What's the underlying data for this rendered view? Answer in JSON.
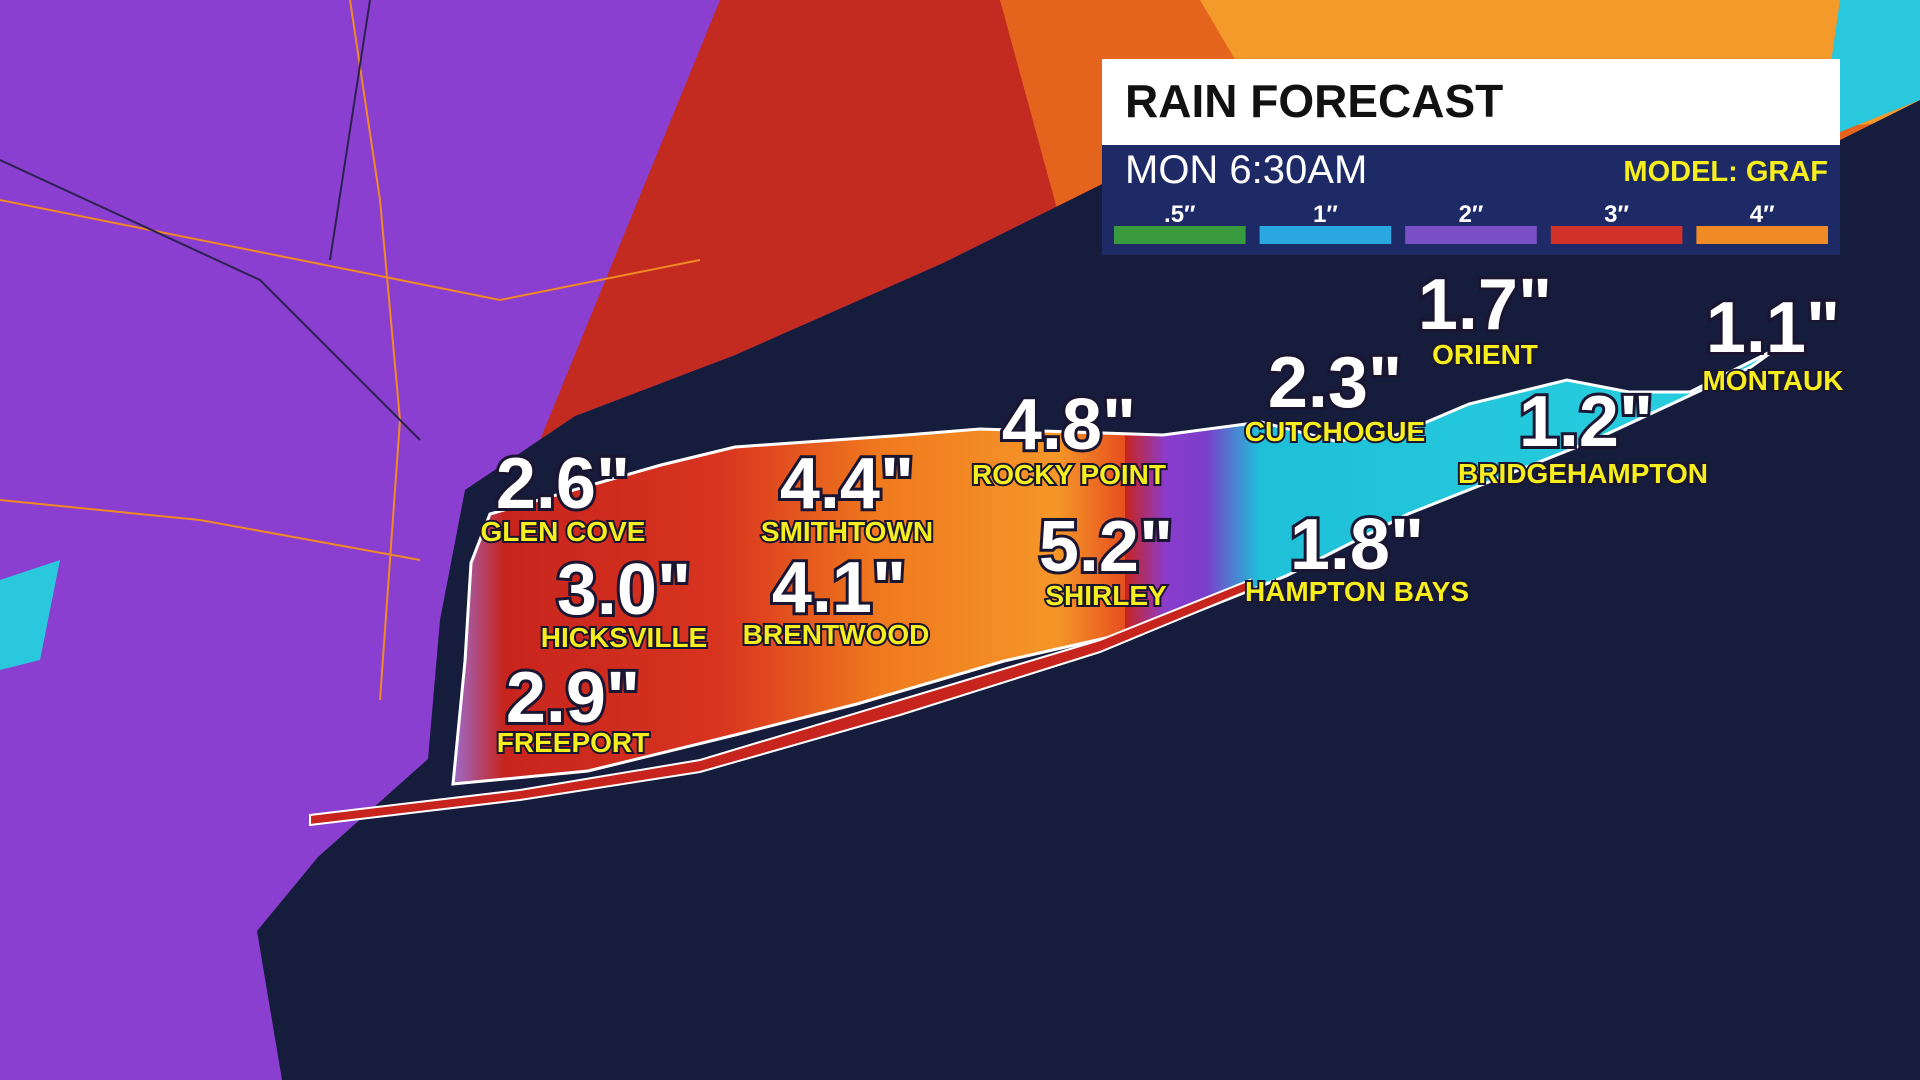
{
  "header": {
    "title": "RAIN FORECAST",
    "time": "MON 6:30AM",
    "model": "MODEL: GRAF"
  },
  "legend": [
    {
      "label": ".5″",
      "color": "#3a9a3e"
    },
    {
      "label": "1″",
      "color": "#2aa6e0"
    },
    {
      "label": "2″",
      "color": "#7b4fc6"
    },
    {
      "label": "3″",
      "color": "#d2312a"
    },
    {
      "label": "4″",
      "color": "#f08a24"
    }
  ],
  "locations": [
    {
      "value": "2.6\"",
      "name": "GLEN COVE"
    },
    {
      "value": "3.0\"",
      "name": "HICKSVILLE"
    },
    {
      "value": "2.9\"",
      "name": "FREEPORT"
    },
    {
      "value": "4.4\"",
      "name": "SMITHTOWN"
    },
    {
      "value": "4.1\"",
      "name": "BRENTWOOD"
    },
    {
      "value": "4.8\"",
      "name": "ROCKY POINT"
    },
    {
      "value": "5.2\"",
      "name": "SHIRLEY"
    },
    {
      "value": "2.3\"",
      "name": "CUTCHOGUE"
    },
    {
      "value": "1.7\"",
      "name": "ORIENT"
    },
    {
      "value": "1.1\"",
      "name": "MONTAUK"
    },
    {
      "value": "1.2\"",
      "name": "BRIDGEHAMPTON"
    },
    {
      "value": "1.8\"",
      "name": "HAMPTON BAYS"
    }
  ]
}
